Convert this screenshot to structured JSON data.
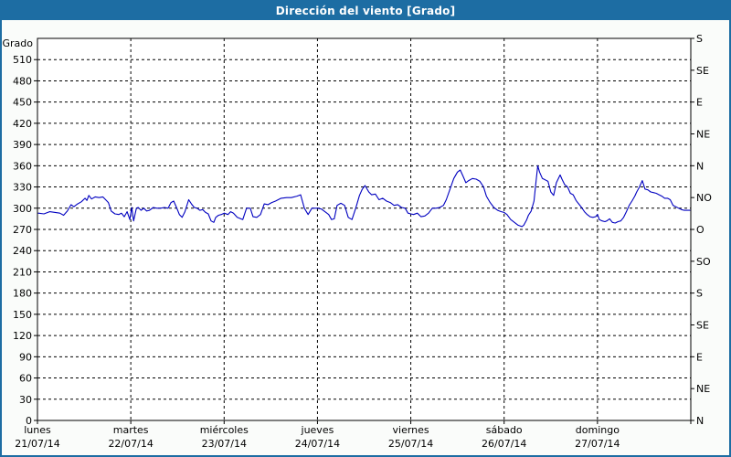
{
  "window": {
    "title": "Dirección del viento [Grado]"
  },
  "colors": {
    "titlebar_bg": "#1d6da3",
    "title_text": "#ffffff",
    "outer_border": "#1d6da3",
    "background": "#fafcfa",
    "plot_background": "#ffffff",
    "axis": "#000000",
    "grid": "#000000",
    "line": "#0000c0"
  },
  "chart_data": {
    "type": "line",
    "title": "Dirección del viento [Grado]",
    "ylabel_left": "Grado",
    "ylim": [
      0,
      540
    ],
    "y_tick_step_left": 30,
    "y_tick_labels_left": [
      "0",
      "30",
      "60",
      "90",
      "120",
      "150",
      "180",
      "210",
      "240",
      "270",
      "300",
      "330",
      "360",
      "390",
      "420",
      "450",
      "480",
      "510"
    ],
    "y_tick_step_right": 45,
    "y_tick_labels_right_bottom_to_top": [
      "N",
      "NE",
      "E",
      "SE",
      "S",
      "SO",
      "O",
      "NO",
      "N",
      "NE",
      "E",
      "SE",
      "S"
    ],
    "grid": "dashed",
    "x_days": [
      {
        "name": "lunes",
        "date": "21/07/14"
      },
      {
        "name": "martes",
        "date": "22/07/14"
      },
      {
        "name": "miércoles",
        "date": "23/07/14"
      },
      {
        "name": "jueves",
        "date": "24/07/14"
      },
      {
        "name": "viernes",
        "date": "25/07/14"
      },
      {
        "name": "sábado",
        "date": "26/07/14"
      },
      {
        "name": "domingo",
        "date": "27/07/14"
      }
    ],
    "series": [
      {
        "name": "Dirección del viento",
        "color": "#0000c0",
        "x_unit": "days_from_start",
        "x": [
          0.01,
          0.07,
          0.13,
          0.19,
          0.24,
          0.28,
          0.32,
          0.36,
          0.39,
          0.43,
          0.47,
          0.51,
          0.53,
          0.55,
          0.58,
          0.62,
          0.66,
          0.7,
          0.73,
          0.76,
          0.79,
          0.83,
          0.87,
          0.9,
          0.93,
          0.96,
          0.99,
          1.01,
          1.03,
          1.06,
          1.08,
          1.11,
          1.14,
          1.17,
          1.2,
          1.24,
          1.28,
          1.32,
          1.36,
          1.4,
          1.43,
          1.46,
          1.49,
          1.52,
          1.55,
          1.58,
          1.62,
          1.65,
          1.68,
          1.71,
          1.74,
          1.77,
          1.8,
          1.83,
          1.86,
          1.89,
          1.91,
          1.94,
          1.97,
          2.0,
          2.04,
          2.07,
          2.1,
          2.14,
          2.2,
          2.24,
          2.28,
          2.31,
          2.35,
          2.39,
          2.43,
          2.47,
          2.51,
          2.55,
          2.61,
          2.67,
          2.72,
          2.78,
          2.82,
          2.86,
          2.9,
          2.94,
          2.98,
          3.0,
          3.04,
          3.08,
          3.12,
          3.15,
          3.18,
          3.21,
          3.25,
          3.29,
          3.33,
          3.37,
          3.41,
          3.45,
          3.48,
          3.51,
          3.55,
          3.58,
          3.62,
          3.66,
          3.7,
          3.74,
          3.78,
          3.82,
          3.86,
          3.9,
          3.94,
          3.97,
          4.0,
          4.03,
          4.07,
          4.11,
          4.15,
          4.19,
          4.23,
          4.27,
          4.31,
          4.35,
          4.38,
          4.42,
          4.46,
          4.5,
          4.53,
          4.56,
          4.59,
          4.62,
          4.66,
          4.7,
          4.74,
          4.78,
          4.81,
          4.85,
          4.89,
          4.93,
          4.97,
          5.0,
          5.03,
          5.07,
          5.11,
          5.15,
          5.19,
          5.21,
          5.24,
          5.26,
          5.29,
          5.32,
          5.34,
          5.36,
          5.38,
          5.41,
          5.44,
          5.47,
          5.5,
          5.53,
          5.56,
          5.6,
          5.62,
          5.65,
          5.68,
          5.71,
          5.74,
          5.77,
          5.8,
          5.83,
          5.86,
          5.89,
          5.92,
          5.95,
          5.98,
          6.0,
          6.02,
          6.05,
          6.08,
          6.1,
          6.13,
          6.16,
          6.19,
          6.22,
          6.25,
          6.28,
          6.31,
          6.34,
          6.37,
          6.4,
          6.42,
          6.45,
          6.48,
          6.51,
          6.54,
          6.57,
          6.6,
          6.63,
          6.66,
          6.69,
          6.72,
          6.75,
          6.78,
          6.81,
          6.84,
          6.87,
          6.9,
          6.93,
          6.96,
          6.99
        ],
        "y": [
          293,
          292,
          295,
          294,
          293,
          290,
          296,
          305,
          302,
          306,
          309,
          314,
          311,
          318,
          313,
          316,
          315,
          316,
          312,
          308,
          296,
          292,
          291,
          293,
          288,
          295,
          284,
          301,
          282,
          300,
          301,
          297,
          300,
          296,
          297,
          301,
          300,
          300,
          301,
          300,
          308,
          310,
          301,
          291,
          287,
          295,
          312,
          306,
          301,
          300,
          297,
          298,
          294,
          292,
          282,
          280,
          287,
          290,
          291,
          293,
          291,
          295,
          293,
          287,
          284,
          300,
          300,
          288,
          287,
          291,
          306,
          305,
          308,
          310,
          314,
          315,
          315,
          317,
          319,
          300,
          291,
          300,
          300,
          300,
          299,
          295,
          291,
          284,
          285,
          304,
          307,
          304,
          287,
          284,
          300,
          318,
          327,
          332,
          323,
          319,
          320,
          312,
          314,
          310,
          308,
          304,
          305,
          301,
          300,
          293,
          292,
          291,
          293,
          288,
          289,
          293,
          300,
          300,
          301,
          304,
          312,
          327,
          342,
          351,
          354,
          345,
          336,
          339,
          342,
          341,
          338,
          330,
          317,
          308,
          301,
          297,
          295,
          294,
          291,
          284,
          280,
          276,
          274,
          276,
          283,
          290,
          296,
          310,
          335,
          360,
          351,
          342,
          340,
          338,
          323,
          318,
          336,
          347,
          341,
          333,
          330,
          321,
          319,
          311,
          306,
          301,
          295,
          291,
          288,
          287,
          288,
          291,
          284,
          282,
          281,
          282,
          285,
          280,
          279,
          281,
          282,
          287,
          295,
          304,
          310,
          317,
          323,
          330,
          339,
          327,
          326,
          323,
          322,
          321,
          319,
          317,
          314,
          314,
          312,
          304,
          302,
          300,
          298,
          297,
          297,
          297
        ]
      }
    ]
  }
}
